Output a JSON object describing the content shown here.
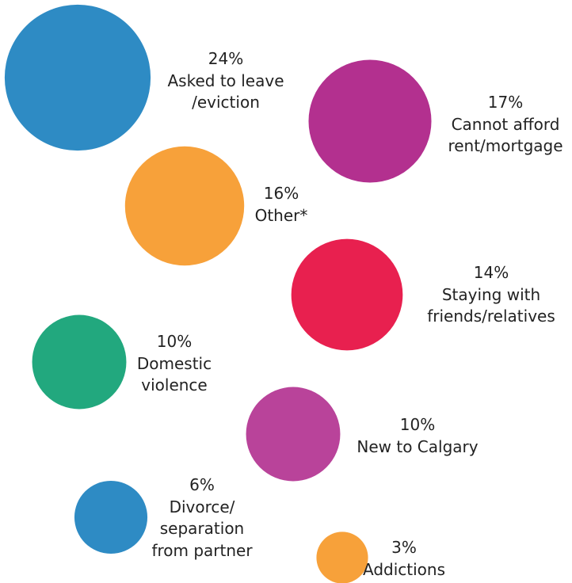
{
  "chart_data": {
    "type": "bubble",
    "categories": [
      "Asked to leave\n/eviction",
      "Cannot afford\nrent/mortgage",
      "Other*",
      "Staying with\nfriends/relatives",
      "Domestic\nviolence",
      "New to Calgary",
      "Divorce/\nseparation\nfrom partner",
      "Addictions"
    ],
    "values": [
      24,
      17,
      16,
      14,
      10,
      10,
      6,
      3
    ],
    "value_labels": [
      "24%",
      "17%",
      "16%",
      "14%",
      "10%",
      "10%",
      "6%",
      "3%"
    ],
    "colors": [
      "#2e8bc4",
      "#b3308f",
      "#f7a13a",
      "#e8204f",
      "#22a87e",
      "#b9439a",
      "#2e8bc4",
      "#f7a13a"
    ]
  }
}
